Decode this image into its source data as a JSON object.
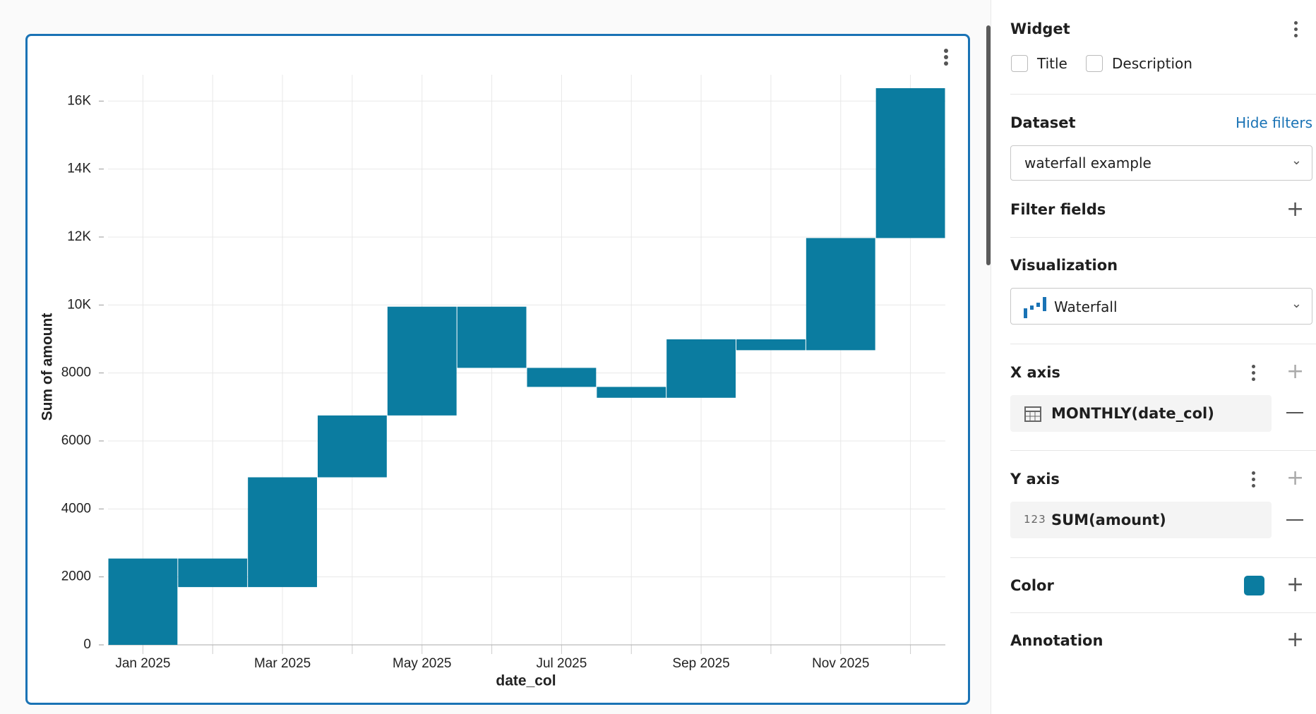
{
  "chart_data": {
    "type": "waterfall",
    "y_label": "Sum of amount",
    "x_label": "date_col",
    "categories": [
      "Jan 2025",
      null,
      "Mar 2025",
      null,
      "May 2025",
      null,
      "Jul 2025",
      null,
      "Sep 2025",
      null,
      "Nov 2025",
      null
    ],
    "values": [
      2540,
      -840,
      3230,
      1820,
      3200,
      -1800,
      -560,
      -320,
      1720,
      -320,
      3300,
      4410
    ],
    "color": "#0b7ca0",
    "grid": true,
    "ylim": [
      0,
      16400
    ],
    "yticks": [
      0,
      2000,
      4000,
      6000,
      8000,
      {
        "value": 10000,
        "label": "10K"
      },
      {
        "value": 12000,
        "label": "12K"
      },
      {
        "value": 14000,
        "label": "14K"
      },
      {
        "value": 16000,
        "label": "16K"
      }
    ]
  },
  "panel": {
    "widget": {
      "title": "Widget",
      "options": [
        "Title",
        "Description"
      ]
    },
    "dataset": {
      "title": "Dataset",
      "action": "Hide filters",
      "value": "waterfall example"
    },
    "filter_fields": "Filter fields",
    "visualization": {
      "title": "Visualization",
      "value": "Waterfall"
    },
    "x_axis": {
      "title": "X axis",
      "field": "MONTHLY(date_col)"
    },
    "y_axis": {
      "title": "Y axis",
      "icon": "123",
      "field": "SUM(amount)"
    },
    "color": "Color",
    "annotation": "Annotation"
  }
}
